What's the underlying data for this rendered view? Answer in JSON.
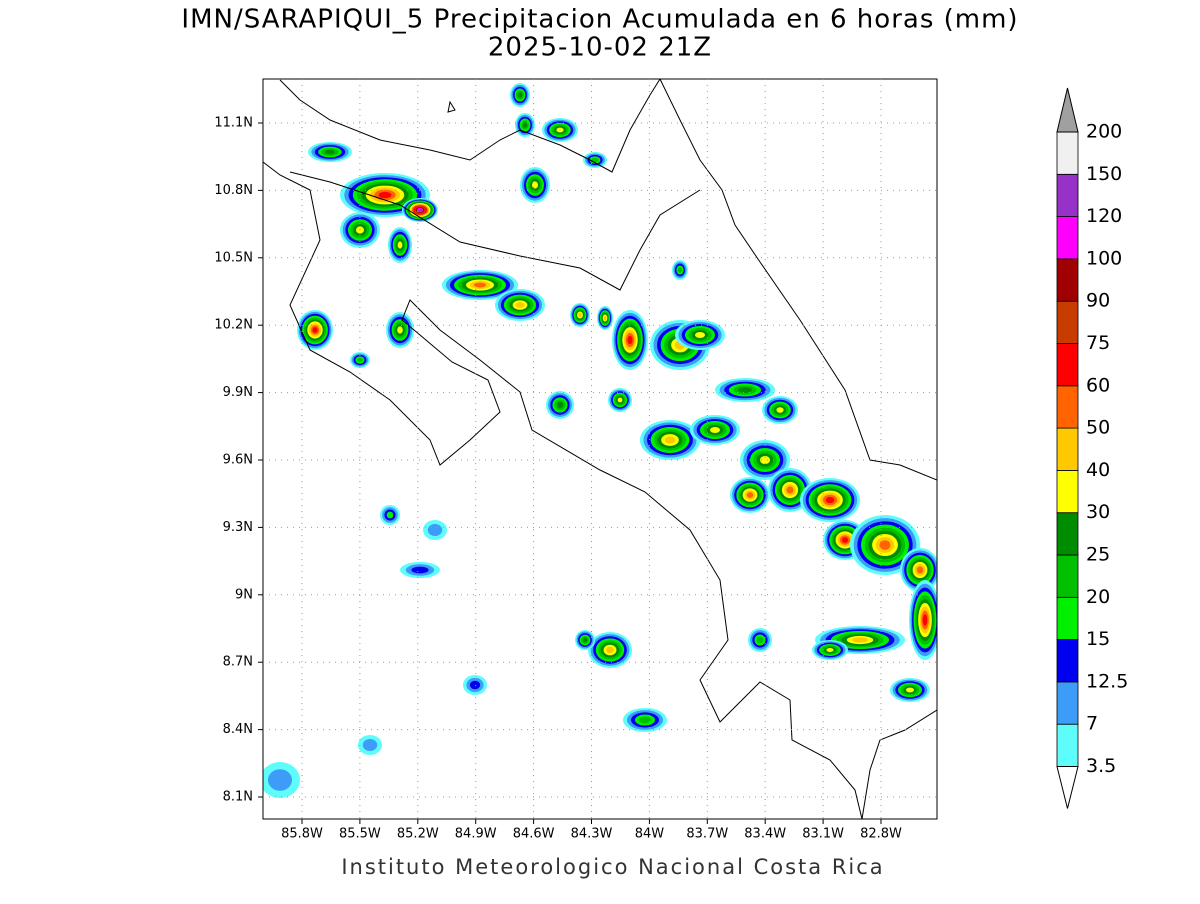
{
  "title": "IMN/SARAPIQUI_5 Precipitacion Acumulada en 6 horas (mm)",
  "subtitle": "2025-10-02 21Z",
  "lat_labels": [
    "11.1N",
    "10.8N",
    "10.5N",
    "10.2N",
    "9.9N",
    "9.6N",
    "9.3N",
    "9N",
    "8.7N",
    "8.4N",
    "8.1N"
  ],
  "lon_labels": [
    "85.8W",
    "85.5W",
    "85.2W",
    "84.9W",
    "84.6W",
    "84.3W",
    "84W",
    "83.7W",
    "83.4W",
    "83.1W",
    "82.8W"
  ],
  "colorbar": {
    "levels": [
      3.5,
      7,
      12.5,
      15,
      20,
      25,
      30,
      40,
      50,
      60,
      75,
      90,
      100,
      120,
      150,
      200
    ],
    "colors": [
      "#5ffcfc",
      "#3c9cf8",
      "#0000f0",
      "#00f000",
      "#00c000",
      "#008c00",
      "#ffff00",
      "#ffc800",
      "#ff6400",
      "#ff0000",
      "#c83c00",
      "#a00000",
      "#ff00ff",
      "#9632c8",
      "#f0f0f0"
    ],
    "over_color": "#a0a0a0",
    "under_color": "#ffffff"
  },
  "footer": "Instituto Meteorologico Nacional Costa Rica"
}
